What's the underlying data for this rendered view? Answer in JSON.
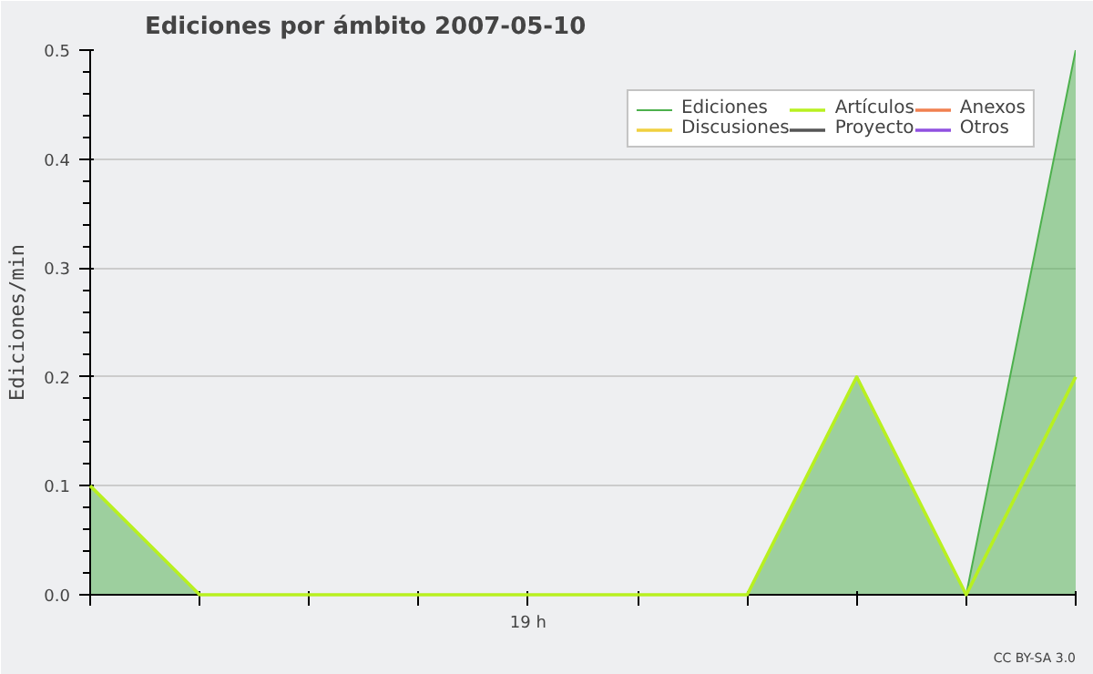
{
  "chart_data": {
    "type": "area",
    "title": "Ediciones por ámbito  2007-05-10",
    "ylabel": "Ediciones/min",
    "categories": [
      null,
      null,
      null,
      null,
      "19 h",
      null,
      null,
      null,
      null,
      null
    ],
    "ylim": [
      0,
      0.5
    ],
    "yticks": [
      {
        "value": 0,
        "label": "0.0"
      },
      {
        "value": 0.1,
        "label": "0.1"
      },
      {
        "value": 0.2,
        "label": "0.2"
      },
      {
        "value": 0.3,
        "label": "0.3"
      },
      {
        "value": 0.4,
        "label": "0.4"
      },
      {
        "value": 0.5,
        "label": "0.5"
      }
    ],
    "series": [
      {
        "name": "Ediciones",
        "color": "#4cb04c",
        "values": [
          0.1,
          0,
          0,
          0,
          0,
          0,
          0,
          0.2,
          0,
          0.5
        ]
      },
      {
        "name": "Discusiones",
        "type": "line",
        "color": "#f0d040",
        "values": [
          null,
          null,
          null,
          null,
          null,
          null,
          null,
          null,
          null,
          null
        ]
      },
      {
        "name": "Artículos",
        "type": "line",
        "color": "#b8f020",
        "values": [
          0.1,
          0,
          0,
          0,
          0,
          0,
          0,
          0.2,
          0,
          0.2
        ]
      },
      {
        "name": "Proyecto",
        "type": "line",
        "color": "#555555",
        "values": [
          null,
          null,
          null,
          null,
          null,
          null,
          null,
          null,
          null,
          null
        ]
      },
      {
        "name": "Anexos",
        "type": "line",
        "color": "#f08050",
        "values": [
          null,
          null,
          null,
          null,
          null,
          null,
          null,
          null,
          null,
          null
        ]
      },
      {
        "name": "Otros",
        "type": "line",
        "color": "#9050e0",
        "values": [
          null,
          null,
          null,
          null,
          null,
          null,
          null,
          null,
          null,
          null
        ]
      }
    ],
    "annotations": [
      "CC BY-SA 3.0"
    ],
    "grid": "y",
    "legend": "top right"
  }
}
